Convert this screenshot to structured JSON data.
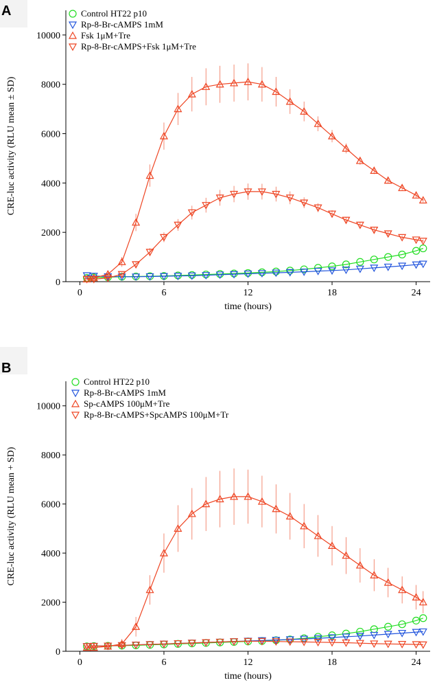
{
  "colors": {
    "control": "#22dd22",
    "rp": "#2255dd",
    "treat_a": "#ee4422",
    "rp_treat_a": "#ee4422",
    "treat_b": "#ee4422",
    "rp_treat_b": "#ee4422",
    "error_bar": "#ee5533"
  },
  "chart_data": [
    {
      "type": "scatter",
      "panel": "A",
      "xlabel": "time (hours)",
      "ylabel": "CRE-luc activity (RLU mean ± SD)",
      "xlim": [
        -1,
        25
      ],
      "ylim": [
        0,
        11000
      ],
      "xticks": [
        0,
        6,
        12,
        18,
        24
      ],
      "yticks": [
        0,
        2000,
        4000,
        6000,
        8000,
        10000
      ],
      "x": [
        0.5,
        1,
        2,
        3,
        4,
        5,
        6,
        7,
        8,
        9,
        10,
        11,
        12,
        13,
        14,
        15,
        16,
        17,
        18,
        19,
        20,
        21,
        22,
        23,
        24,
        24.5
      ],
      "series": [
        {
          "name": "Control HT22 p10",
          "marker": "circle",
          "color_key": "control",
          "values": [
            150,
            170,
            180,
            200,
            210,
            220,
            230,
            250,
            270,
            290,
            310,
            330,
            350,
            380,
            410,
            450,
            500,
            560,
            620,
            700,
            800,
            900,
            1000,
            1100,
            1250,
            1350
          ]
        },
        {
          "name": "Rp-8-Br-cAMPS 1mM",
          "marker": "triangle-down",
          "color_key": "rp",
          "values": [
            250,
            230,
            210,
            200,
            200,
            210,
            220,
            230,
            240,
            260,
            280,
            300,
            320,
            340,
            360,
            380,
            400,
            430,
            450,
            480,
            520,
            560,
            600,
            640,
            690,
            720
          ]
        },
        {
          "name": "Fsk 1μM+Tre",
          "marker": "triangle-up",
          "color_key": "treat_a",
          "values": [
            100,
            150,
            300,
            800,
            2400,
            4300,
            5900,
            7000,
            7600,
            7900,
            8000,
            8050,
            8100,
            8000,
            7700,
            7300,
            6900,
            6400,
            5900,
            5400,
            4900,
            4500,
            4100,
            3800,
            3500,
            3300
          ],
          "sd": [
            30,
            50,
            100,
            200,
            350,
            450,
            550,
            650,
            700,
            750,
            750,
            750,
            750,
            700,
            600,
            500,
            400,
            300,
            250,
            200,
            160,
            140,
            120,
            100,
            90,
            80
          ]
        },
        {
          "name": "Rp-8-Br-cAMPS+Fsk 1μM+Tre",
          "marker": "triangle-down",
          "color_key": "rp_treat_a",
          "values": [
            100,
            100,
            150,
            300,
            700,
            1200,
            1800,
            2300,
            2800,
            3100,
            3400,
            3550,
            3650,
            3650,
            3550,
            3400,
            3200,
            3000,
            2750,
            2500,
            2300,
            2100,
            1950,
            1800,
            1700,
            1650
          ],
          "sd": [
            20,
            30,
            50,
            80,
            120,
            160,
            200,
            240,
            280,
            300,
            320,
            330,
            330,
            320,
            300,
            260,
            220,
            180,
            150,
            120,
            100,
            90,
            80,
            70,
            60,
            60
          ]
        }
      ],
      "legend_position": "top-left"
    },
    {
      "type": "scatter",
      "panel": "B",
      "xlabel": "time (hours)",
      "ylabel": "CRE-luc activity (RLU mean + SD)",
      "xlim": [
        -1,
        25
      ],
      "ylim": [
        0,
        11000
      ],
      "xticks": [
        0,
        6,
        12,
        18,
        24
      ],
      "yticks": [
        0,
        2000,
        4000,
        6000,
        8000,
        10000
      ],
      "x": [
        0.5,
        1,
        2,
        3,
        4,
        5,
        6,
        7,
        8,
        9,
        10,
        11,
        12,
        13,
        14,
        15,
        16,
        17,
        18,
        19,
        20,
        21,
        22,
        23,
        24,
        24.5
      ],
      "series": [
        {
          "name": "Control HT22 p10",
          "marker": "circle",
          "color_key": "control",
          "values": [
            200,
            210,
            220,
            230,
            240,
            260,
            280,
            300,
            320,
            340,
            360,
            380,
            400,
            420,
            450,
            480,
            530,
            590,
            650,
            720,
            800,
            900,
            1000,
            1100,
            1250,
            1350
          ]
        },
        {
          "name": "Rp-8-Br-cAMPS 1mM",
          "marker": "triangle-down",
          "color_key": "rp",
          "values": [
            200,
            210,
            220,
            240,
            260,
            280,
            300,
            320,
            340,
            360,
            380,
            400,
            420,
            440,
            460,
            480,
            500,
            530,
            560,
            590,
            620,
            660,
            700,
            740,
            780,
            800
          ]
        },
        {
          "name": "Sp-cAMPS 100μM+Tre",
          "marker": "triangle-up",
          "color_key": "treat_b",
          "values": [
            150,
            150,
            200,
            300,
            1000,
            2500,
            4000,
            5000,
            5600,
            6000,
            6200,
            6300,
            6300,
            6100,
            5800,
            5500,
            5100,
            4700,
            4300,
            3900,
            3500,
            3100,
            2800,
            2500,
            2200,
            2000
          ],
          "sd": [
            30,
            40,
            80,
            200,
            400,
            600,
            800,
            950,
            1050,
            1100,
            1150,
            1150,
            1100,
            1050,
            1000,
            950,
            900,
            850,
            800,
            750,
            700,
            650,
            600,
            550,
            500,
            450
          ]
        },
        {
          "name": "Rp-8-Br-cAMPS+SpcAMPS 100μM+Tr",
          "marker": "triangle-down",
          "color_key": "rp_treat_b",
          "values": [
            200,
            210,
            220,
            240,
            260,
            280,
            300,
            320,
            340,
            360,
            380,
            400,
            410,
            410,
            400,
            390,
            380,
            370,
            360,
            350,
            330,
            310,
            300,
            290,
            280,
            270
          ]
        }
      ],
      "legend_position": "top-left"
    }
  ],
  "panels": [
    {
      "letter": "A",
      "legend": [
        "Control HT22 p10",
        "Rp-8-Br-cAMPS 1mM",
        "Fsk 1μM+Tre",
        "Rp-8-Br-cAMPS+Fsk 1μM+Tre"
      ]
    },
    {
      "letter": "B",
      "legend": [
        "Control HT22 p10",
        "Rp-8-Br-cAMPS 1mM",
        "Sp-cAMPS 100μM+Tre",
        "Rp-8-Br-cAMPS+SpcAMPS 100μM+Tr"
      ]
    }
  ]
}
